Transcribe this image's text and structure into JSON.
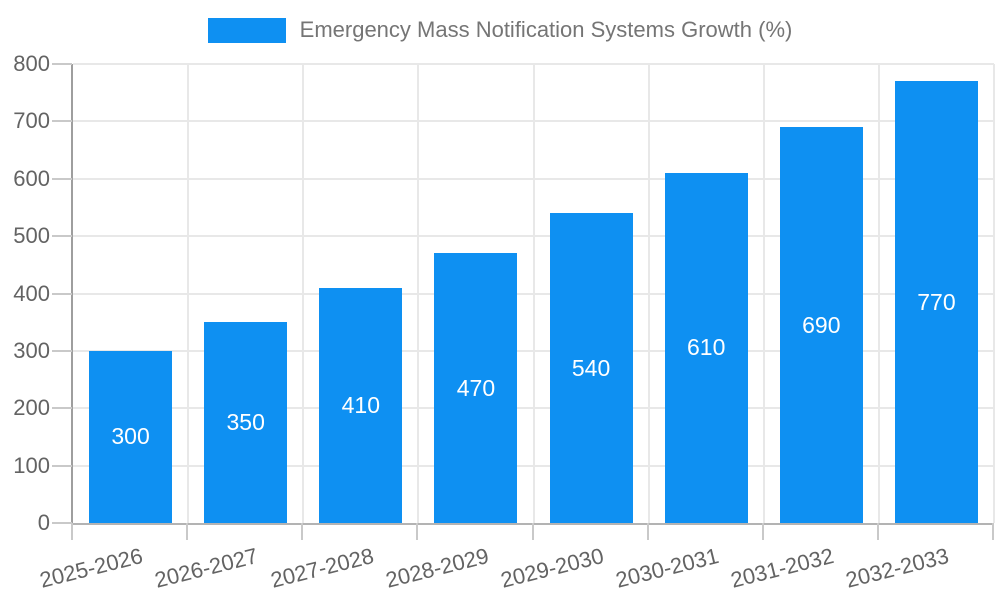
{
  "colors": {
    "bar": "#0e90f2",
    "bar_label": "#ffffff",
    "legend_text": "#757575",
    "axis_text": "#636363",
    "grid_line": "#e8e8e8",
    "tick_line": "#c9c9c9",
    "y_axis_line": "#9e9e9e",
    "x_axis_line": "#b3b3b3",
    "background": "#ffffff"
  },
  "chart_data": {
    "type": "bar",
    "title": "Emergency Mass Notification Systems Growth (%)",
    "legend_position": "top",
    "categories": [
      "2025-2026",
      "2026-2027",
      "2027-2028",
      "2028-2029",
      "2029-2030",
      "2030-2031",
      "2031-2032",
      "2032-2033"
    ],
    "values": [
      300,
      350,
      410,
      470,
      540,
      610,
      690,
      770
    ],
    "bar_value_labels": [
      "300",
      "350",
      "410",
      "470",
      "540",
      "610",
      "690",
      "770"
    ],
    "xlabel": "",
    "ylabel": "",
    "ylim": [
      0,
      800
    ],
    "ytick_interval": 100,
    "ytick_labels": [
      "0",
      "100",
      "200",
      "300",
      "400",
      "500",
      "600",
      "700",
      "800"
    ],
    "grid": true,
    "x_label_rotation_deg": -14
  }
}
